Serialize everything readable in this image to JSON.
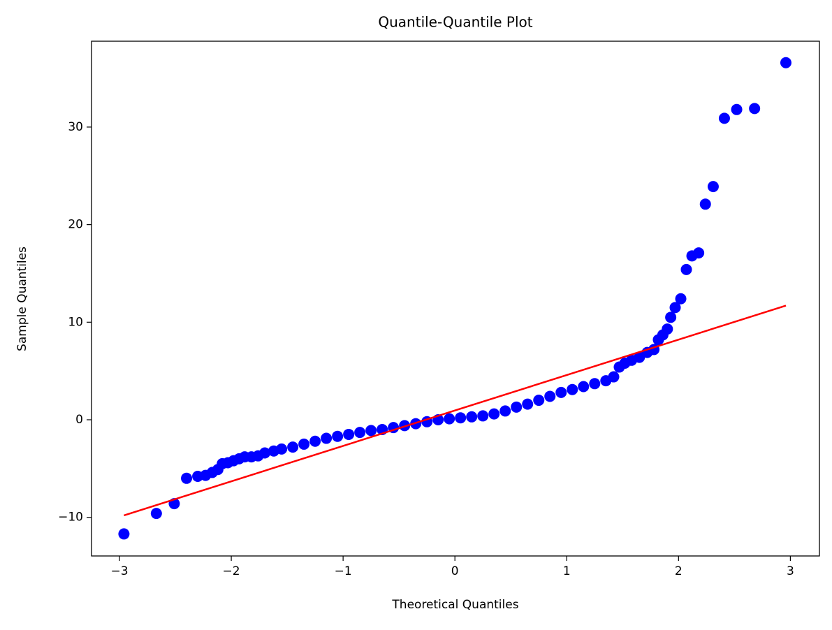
{
  "chart_data": {
    "type": "scatter",
    "title": "Quantile-Quantile Plot",
    "xlabel": "Theoretical Quantiles",
    "ylabel": "Sample Quantiles",
    "xlim": [
      -3.25,
      3.26
    ],
    "ylim": [
      -13.96,
      38.8
    ],
    "xticks": [
      {
        "value": -3,
        "label": "−3"
      },
      {
        "value": -2,
        "label": "−2"
      },
      {
        "value": -1,
        "label": "−1"
      },
      0,
      1,
      2,
      3
    ],
    "yticks": [
      {
        "value": -10,
        "label": "−10"
      },
      0,
      10,
      20,
      30
    ],
    "series": [
      {
        "color": "#0000ff",
        "x": [
          -2.96,
          -2.67,
          -2.51,
          -2.4,
          -2.3,
          -2.23,
          -2.17,
          -2.12,
          -2.08,
          -2.03,
          -1.98,
          -1.93,
          -1.88,
          -1.82,
          -1.76,
          -1.7,
          -1.62,
          -1.55,
          -1.45,
          -1.35,
          -1.25,
          -1.15,
          -1.05,
          -0.95,
          -0.85,
          -0.75,
          -0.65,
          -0.55,
          -0.45,
          -0.35,
          -0.25,
          -0.15,
          -0.05,
          0.05,
          0.15,
          0.25,
          0.35,
          0.45,
          0.55,
          0.65,
          0.75,
          0.85,
          0.95,
          1.05,
          1.15,
          1.25,
          1.35,
          1.42,
          1.47,
          1.52,
          1.58,
          1.65,
          1.72,
          1.78,
          1.82,
          1.86,
          1.9,
          1.93,
          1.97,
          2.02,
          2.07,
          2.12,
          2.18,
          2.24,
          2.31,
          2.41,
          2.52,
          2.68,
          2.96
        ],
        "values": [
          -11.7,
          -9.6,
          -8.6,
          -6.0,
          -5.8,
          -5.7,
          -5.4,
          -5.1,
          -4.5,
          -4.4,
          -4.2,
          -4.0,
          -3.8,
          -3.8,
          -3.7,
          -3.4,
          -3.2,
          -3.0,
          -2.8,
          -2.5,
          -2.2,
          -1.9,
          -1.7,
          -1.5,
          -1.3,
          -1.1,
          -1.0,
          -0.8,
          -0.6,
          -0.4,
          -0.2,
          0.0,
          0.1,
          0.2,
          0.3,
          0.4,
          0.6,
          0.9,
          1.3,
          1.6,
          2.0,
          2.4,
          2.8,
          3.1,
          3.4,
          3.7,
          4.0,
          4.4,
          5.4,
          5.8,
          6.1,
          6.4,
          6.9,
          7.2,
          8.2,
          8.7,
          9.3,
          10.5,
          11.5,
          12.4,
          15.4,
          16.8,
          17.1,
          22.1,
          23.9,
          30.9,
          31.8,
          31.9,
          36.6
        ]
      },
      {
        "color": "#ff0000",
        "style": "line",
        "x": [
          -2.96,
          2.96
        ],
        "values": [
          -9.8,
          11.7
        ]
      }
    ]
  }
}
